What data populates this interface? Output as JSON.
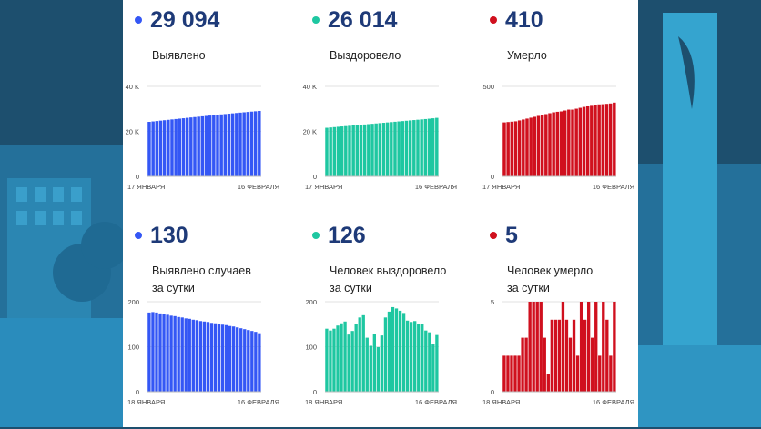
{
  "colors": {
    "blue": "#3457f5",
    "teal": "#1ec7a1",
    "red": "#d0101e",
    "number": "#1e3a78"
  },
  "cards": [
    {
      "value": "29 094",
      "label_lines": [
        "Выявлено"
      ],
      "chart_data": {
        "type": "bar",
        "color": "#3457f5",
        "ylim": [
          0,
          40000
        ],
        "y_ticks": [
          "0",
          "20 K",
          "40 K"
        ],
        "x_tick_labels": [
          "17 ЯНВАРЯ",
          "16 ФЕВРАЛЯ"
        ],
        "values": [
          24240,
          24420,
          24600,
          24780,
          24960,
          25140,
          25320,
          25490,
          25670,
          25840,
          26020,
          26190,
          26360,
          26530,
          26700,
          26870,
          27040,
          27210,
          27380,
          27550,
          27710,
          27870,
          28020,
          28180,
          28340,
          28490,
          28640,
          28790,
          28940,
          29094
        ]
      }
    },
    {
      "value": "26 014",
      "label_lines": [
        "Выздоровело"
      ],
      "chart_data": {
        "type": "bar",
        "color": "#1ec7a1",
        "ylim": [
          0,
          40000
        ],
        "y_ticks": [
          "0",
          "20 K",
          "40 K"
        ],
        "x_tick_labels": [
          "17 ЯНВАРЯ",
          "16 ФЕВРАЛЯ"
        ],
        "values": [
          21600,
          21750,
          21900,
          22050,
          22200,
          22340,
          22480,
          22630,
          22780,
          22930,
          23080,
          23230,
          23380,
          23530,
          23680,
          23830,
          23980,
          24130,
          24280,
          24430,
          24580,
          24730,
          24880,
          25030,
          25180,
          25330,
          25480,
          25630,
          25820,
          26014
        ]
      }
    },
    {
      "value": "410",
      "label_lines": [
        "Умерло"
      ],
      "chart_data": {
        "type": "bar",
        "color": "#d0101e",
        "ylim": [
          0,
          500
        ],
        "y_ticks": [
          "0",
          "500"
        ],
        "x_tick_labels": [
          "17 ЯНВАРЯ",
          "16 ФЕВРАЛЯ"
        ],
        "values": [
          300,
          302,
          304,
          306,
          311,
          316,
          321,
          326,
          331,
          336,
          341,
          346,
          351,
          356,
          359,
          361,
          366,
          371,
          371,
          376,
          381,
          386,
          389,
          392,
          395,
          400,
          401,
          403,
          405,
          410
        ]
      }
    },
    {
      "value": "130",
      "label_lines": [
        "Выявлено случаев",
        "за сутки"
      ],
      "chart_data": {
        "type": "bar",
        "color": "#3457f5",
        "ylim": [
          0,
          200
        ],
        "y_ticks": [
          "0",
          "100",
          "200"
        ],
        "x_tick_labels": [
          "18 ЯНВАРЯ",
          "16 ФЕВРАЛЯ"
        ],
        "values": [
          176,
          177,
          176,
          174,
          172,
          171,
          169,
          168,
          166,
          165,
          163,
          162,
          160,
          159,
          157,
          156,
          155,
          153,
          152,
          151,
          149,
          148,
          146,
          145,
          143,
          141,
          139,
          137,
          135,
          133,
          130
        ]
      }
    },
    {
      "value": "126",
      "label_lines": [
        "Человек выздоровело",
        "за сутки"
      ],
      "chart_data": {
        "type": "bar",
        "color": "#1ec7a1",
        "ylim": [
          0,
          200
        ],
        "y_ticks": [
          "0",
          "100",
          "200"
        ],
        "x_tick_labels": [
          "18 ЯНВАРЯ",
          "16 ФЕВРАЛЯ"
        ],
        "values": [
          140,
          136,
          140,
          147,
          152,
          156,
          127,
          135,
          150,
          165,
          170,
          120,
          102,
          128,
          99,
          125,
          165,
          178,
          188,
          185,
          180,
          175,
          158,
          155,
          157,
          150,
          150,
          136,
          132,
          105,
          126
        ]
      }
    },
    {
      "value": "5",
      "label_lines": [
        "Человек умерло",
        "за сутки"
      ],
      "chart_data": {
        "type": "bar",
        "color": "#d0101e",
        "ylim": [
          0,
          5
        ],
        "y_ticks": [
          "0",
          "5"
        ],
        "x_tick_labels": [
          "18 ЯНВАРЯ",
          "16 ФЕВРАЛЯ"
        ],
        "values": [
          2,
          2,
          2,
          2,
          2,
          3,
          3,
          5,
          5,
          5,
          5,
          3,
          1,
          4,
          4,
          4,
          5,
          4,
          3,
          4,
          2,
          5,
          4,
          5,
          3,
          5,
          2,
          5,
          4,
          2,
          5
        ]
      }
    }
  ]
}
